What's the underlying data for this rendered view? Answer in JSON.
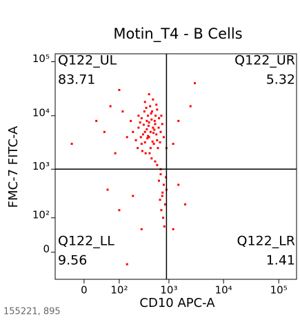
{
  "chart_data": {
    "type": "scatter",
    "title": "Motin_T4 - B Cells",
    "x_label": "CD10 APC-A",
    "y_label": "FMC-7 FITC-A",
    "footnote": "155221, 895",
    "xscale": "biexponential",
    "yscale": "biexponential",
    "xlim": [
      -70,
      210000
    ],
    "ylim": [
      -65,
      140000
    ],
    "xticks": [
      0,
      {
        "value": 100,
        "label": "10²"
      },
      {
        "value": 1000,
        "label": "10³"
      },
      {
        "value": 10000,
        "label": "10⁴"
      },
      {
        "value": 100000,
        "label": "10⁵"
      }
    ],
    "yticks": [
      0,
      {
        "value": 100,
        "label": "10²"
      },
      {
        "value": 1000,
        "label": "10³"
      },
      {
        "value": 10000,
        "label": "10⁴"
      },
      {
        "value": 100000,
        "label": "10⁵"
      }
    ],
    "gate": {
      "x": 900,
      "y": 1000
    },
    "quadrants": [
      {
        "name": "Q122_UL",
        "value": 83.71
      },
      {
        "name": "Q122_UR",
        "value": 5.32
      },
      {
        "name": "Q122_LL",
        "value": 9.56
      },
      {
        "name": "Q122_LR",
        "value": 1.41
      }
    ],
    "color": "#ff0000",
    "x": [
      300,
      350,
      420,
      500,
      380,
      450,
      600,
      550,
      320,
      400,
      480,
      260,
      700,
      650,
      360,
      520,
      440,
      300,
      580,
      410,
      230,
      340,
      620,
      470,
      390,
      530,
      280,
      750,
      500,
      350,
      200,
      450,
      560,
      310,
      680,
      420,
      370,
      490,
      600,
      260,
      800,
      430,
      330,
      540,
      400,
      460,
      290,
      720,
      380,
      510,
      180,
      150,
      120,
      900,
      250,
      640,
      470,
      350,
      580,
      420,
      40,
      60,
      -20,
      80,
      100,
      20,
      700,
      800,
      750,
      650,
      850,
      720,
      900,
      600,
      780,
      820,
      700,
      550,
      880,
      760,
      680,
      200,
      100,
      300,
      150,
      50,
      1500,
      2500,
      1200,
      3000,
      1500,
      2000,
      1200
    ],
    "values": [
      3000,
      5000,
      4000,
      6000,
      8000,
      2500,
      3500,
      7000,
      4500,
      10000,
      12000,
      6000,
      5000,
      9000,
      2000,
      3000,
      15000,
      9000,
      4500,
      6500,
      3500,
      12000,
      2500,
      8500,
      3800,
      5500,
      7500,
      7000,
      20000,
      18000,
      5000,
      5000,
      10000,
      2200,
      3200,
      7500,
      14000,
      3300,
      13000,
      10000,
      4000,
      2000,
      6800,
      8000,
      4200,
      11000,
      4000,
      10000,
      5600,
      4800,
      8000,
      4000,
      12000,
      2500,
      2500,
      6000,
      1600,
      3200,
      16000,
      25000,
      5000,
      15000,
      3000,
      2000,
      30000,
      8000,
      800,
      500,
      300,
      600,
      200,
      150,
      400,
      1200,
      100,
      60,
      1000,
      1400,
      700,
      350,
      250,
      300,
      150,
      50,
      -20,
      400,
      8000,
      15000,
      3000,
      40000,
      500,
      200,
      50
    ]
  }
}
